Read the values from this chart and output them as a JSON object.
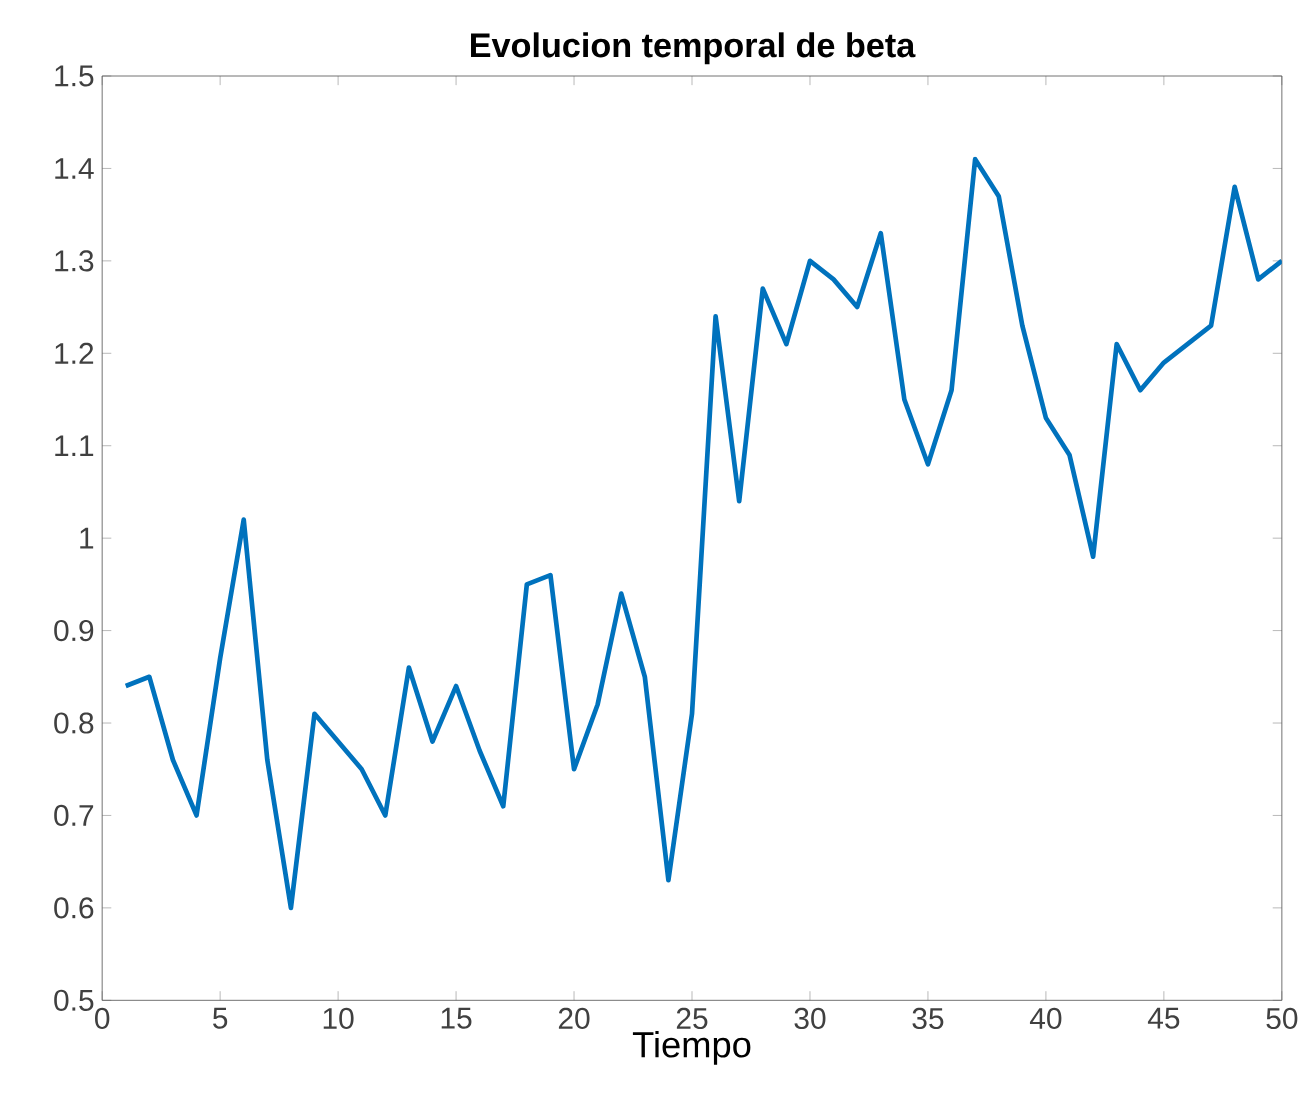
{
  "chart_data": {
    "type": "line",
    "title": "Evolucion temporal de beta",
    "xlabel": "Tiempo",
    "x": [
      1,
      2,
      3,
      4,
      5,
      6,
      7,
      8,
      9,
      10,
      11,
      12,
      13,
      14,
      15,
      16,
      17,
      18,
      19,
      20,
      21,
      22,
      23,
      24,
      25,
      26,
      27,
      28,
      29,
      30,
      31,
      32,
      33,
      34,
      35,
      36,
      37,
      38,
      39,
      40,
      41,
      42,
      43,
      44,
      45,
      46,
      47,
      48,
      49,
      50
    ],
    "series": [
      {
        "color": "#0072bd",
        "values": [
          0.84,
          0.85,
          0.76,
          0.7,
          0.87,
          1.02,
          0.76,
          0.6,
          0.81,
          0.78,
          0.75,
          0.7,
          0.86,
          0.78,
          0.84,
          0.77,
          0.71,
          0.95,
          0.96,
          0.75,
          0.82,
          0.94,
          0.85,
          0.63,
          0.81,
          1.24,
          1.04,
          1.27,
          1.21,
          1.3,
          1.28,
          1.25,
          1.33,
          1.15,
          1.08,
          1.16,
          1.41,
          1.37,
          1.23,
          1.13,
          1.09,
          0.98,
          1.21,
          1.16,
          1.19,
          1.21,
          1.23,
          1.38,
          1.28,
          1.3
        ]
      }
    ],
    "xlim": [
      0,
      50
    ],
    "ylim": [
      0.5,
      1.5
    ],
    "xticks": [
      0,
      5,
      10,
      15,
      20,
      25,
      30,
      35,
      40,
      45,
      50
    ],
    "yticks": [
      0.5,
      0.6,
      0.7,
      0.8,
      0.9,
      1,
      1.1,
      1.2,
      1.3,
      1.4,
      1.5
    ],
    "grid": false,
    "marker": "none",
    "line_style": "solid"
  }
}
